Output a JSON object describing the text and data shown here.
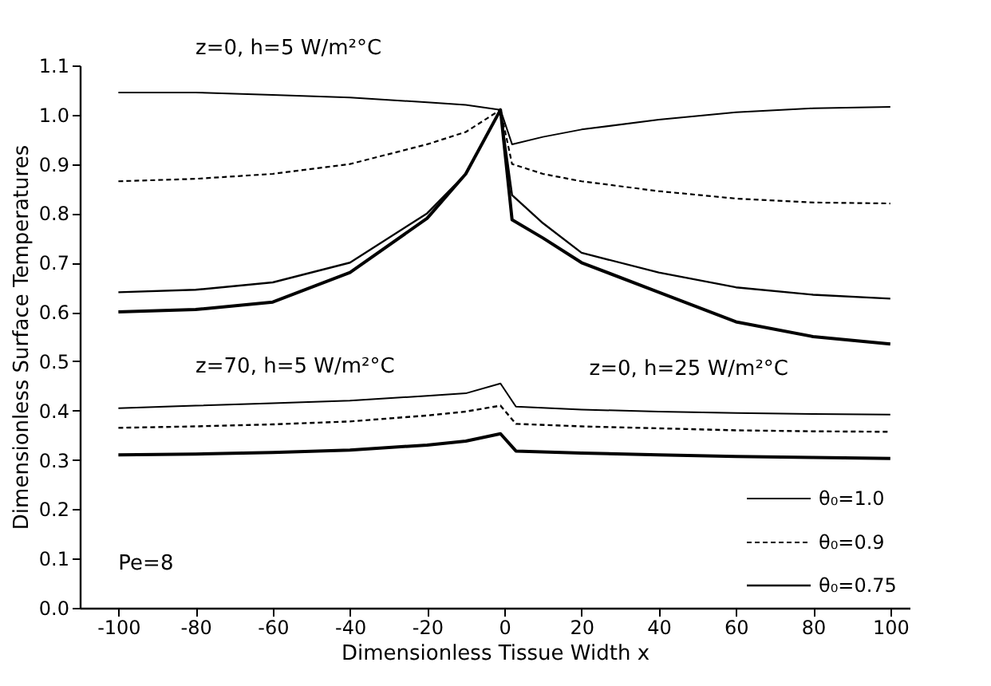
{
  "chart_data": {
    "type": "line",
    "xlabel": "Dimensionless Tissue Width  x",
    "ylabel": "Dimensionless Surface Temperatures",
    "xlim": [
      -110,
      105
    ],
    "xticks": [
      -100,
      -80,
      -60,
      -40,
      -20,
      0,
      20,
      40,
      60,
      80,
      100
    ],
    "ylim": [
      0,
      1.1
    ],
    "yticks": [
      {
        "value": 0,
        "label": "0.0"
      },
      0.1,
      0.2,
      0.3,
      0.4,
      0.5,
      0.6,
      0.7,
      0.8,
      0.9,
      {
        "value": 1,
        "label": "1.0"
      },
      1.1
    ],
    "grid": false,
    "legend": "bottom right",
    "marker": "none",
    "annotations": [
      "z=0, h=5 W/m²°C",
      "z=70, h=5 W/m²°C",
      "z=0, h=25 W/m²°C",
      "Pe=8"
    ],
    "series": [
      {
        "name": "θ₀=1.0",
        "color": "#000000",
        "line_style": "solid",
        "x": [
          -100,
          -80,
          -60,
          -40,
          -20,
          -10,
          -1,
          2,
          10,
          20,
          40,
          60,
          80,
          100
        ],
        "values": [
          1.045,
          1.045,
          1.04,
          1.035,
          1.025,
          1.02,
          1.01,
          0.94,
          0.955,
          0.97,
          0.99,
          1.005,
          1.013,
          1.016
        ]
      },
      {
        "name": "θ₀=0.9",
        "color": "#000000",
        "line_style": "dashed",
        "x": [
          -100,
          -80,
          -60,
          -40,
          -20,
          -10,
          -1,
          2,
          10,
          20,
          40,
          60,
          80,
          100
        ],
        "values": [
          0.865,
          0.87,
          0.88,
          0.9,
          0.94,
          0.965,
          1.01,
          0.9,
          0.88,
          0.865,
          0.845,
          0.83,
          0.822,
          0.82
        ]
      },
      {
        "name": "θ₀=0.75",
        "color": "#000000",
        "line_style": "solid",
        "x": [
          -100,
          -80,
          -60,
          -40,
          -20,
          -10,
          -1,
          2,
          10,
          20,
          40,
          60,
          80,
          100
        ],
        "values": [
          0.64,
          0.645,
          0.66,
          0.7,
          0.8,
          0.88,
          1.01,
          0.837,
          0.78,
          0.72,
          0.68,
          0.65,
          0.635,
          0.627
        ]
      },
      {
        "color": "#000000",
        "line_style": "solid",
        "x": [
          -100,
          -80,
          -60,
          -40,
          -20,
          -10,
          -1,
          2,
          10,
          20,
          40,
          60,
          80,
          100
        ],
        "values": [
          0.6,
          0.605,
          0.62,
          0.68,
          0.79,
          0.88,
          1.01,
          0.787,
          0.75,
          0.7,
          0.64,
          0.58,
          0.55,
          0.535
        ]
      },
      {
        "color": "#000000",
        "line_style": "solid",
        "x": [
          -100,
          -80,
          -60,
          -40,
          -20,
          -10,
          -1,
          3,
          20,
          40,
          60,
          80,
          100
        ],
        "values": [
          0.405,
          0.41,
          0.415,
          0.42,
          0.43,
          0.435,
          0.455,
          0.408,
          0.402,
          0.398,
          0.395,
          0.393,
          0.392
        ]
      },
      {
        "color": "#000000",
        "line_style": "dashed",
        "x": [
          -100,
          -80,
          -60,
          -40,
          -20,
          -10,
          -1,
          3,
          20,
          40,
          60,
          80,
          100
        ],
        "values": [
          0.365,
          0.368,
          0.372,
          0.378,
          0.39,
          0.398,
          0.41,
          0.373,
          0.368,
          0.364,
          0.36,
          0.358,
          0.357
        ]
      },
      {
        "color": "#000000",
        "line_style": "solid",
        "x": [
          -100,
          -80,
          -60,
          -40,
          -20,
          -10,
          -1,
          3,
          20,
          40,
          60,
          80,
          100
        ],
        "values": [
          0.31,
          0.312,
          0.315,
          0.32,
          0.33,
          0.338,
          0.353,
          0.318,
          0.314,
          0.31,
          0.307,
          0.305,
          0.303
        ]
      }
    ]
  }
}
